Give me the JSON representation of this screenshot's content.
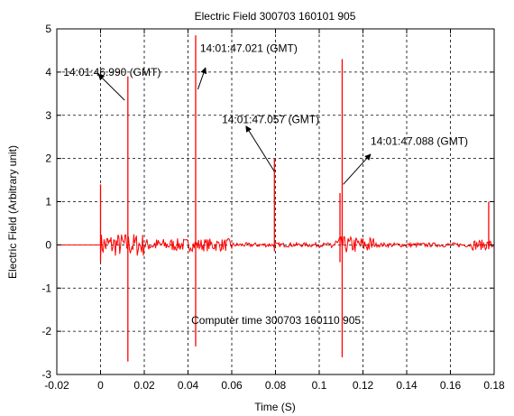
{
  "chart_data": {
    "type": "line",
    "title": "Electric Field 300703 160101 905",
    "xlabel": "Time (S)",
    "ylabel": "Electric Field (Arbitrary unit)",
    "xlim": [
      -0.02,
      0.18
    ],
    "ylim": [
      -3,
      5
    ],
    "grid": true,
    "line_color": "#ff0000",
    "x_ticks": [
      -0.02,
      0,
      0.02,
      0.04,
      0.06,
      0.08,
      0.1,
      0.12,
      0.14,
      0.16,
      0.18
    ],
    "x_tick_labels": [
      "-0.02",
      "0",
      "0.02",
      "0.04",
      "0.06",
      "0.08",
      "0.1",
      "0.12",
      "0.14",
      "0.16",
      "0.18"
    ],
    "y_ticks": [
      -3,
      -2,
      -1,
      0,
      1,
      2,
      3,
      4,
      5
    ],
    "y_tick_labels": [
      "-3",
      "-2",
      "-1",
      "0",
      "1",
      "2",
      "3",
      "4",
      "5"
    ],
    "series": [
      {
        "baseline_until": 0.0,
        "noise_region": [
          0.0,
          0.18
        ],
        "spikes": [
          {
            "x": 0.0,
            "max": 1.4,
            "min": -0.4
          },
          {
            "x": 0.0125,
            "max": 3.9,
            "min": -2.7
          },
          {
            "x": 0.0435,
            "max": 4.85,
            "min": -2.35
          },
          {
            "x": 0.0795,
            "max": 2.0,
            "min": -0.15
          },
          {
            "x": 0.1095,
            "max": 1.2,
            "min": -0.4
          },
          {
            "x": 0.1105,
            "max": 4.3,
            "min": -2.6
          },
          {
            "x": 0.1775,
            "max": 1.0,
            "min": -0.1
          }
        ]
      }
    ],
    "annotations": [
      {
        "text": "14:01:46.990 (GMT)",
        "x": -0.017,
        "y": 4.0,
        "arrow_from": [
          0.011,
          3.35
        ],
        "arrow_to": [
          -0.001,
          3.95
        ]
      },
      {
        "text": "14:01:47.021 (GMT)",
        "x": 0.0455,
        "y": 4.55,
        "arrow_from": [
          0.0445,
          3.6
        ],
        "arrow_to": [
          0.048,
          4.1
        ]
      },
      {
        "text": "14:01:47.057 (GMT)",
        "x": 0.0555,
        "y": 2.9,
        "arrow_from": [
          0.0795,
          1.7
        ],
        "arrow_to": [
          0.0665,
          2.75
        ]
      },
      {
        "text": "14:01:47.088 (GMT)",
        "x": 0.1235,
        "y": 2.4,
        "arrow_from": [
          0.111,
          1.4
        ],
        "arrow_to": [
          0.1235,
          2.1
        ]
      },
      {
        "text": "Computer time 300703 160110 905",
        "x": 0.0415,
        "y": -1.75
      }
    ]
  }
}
